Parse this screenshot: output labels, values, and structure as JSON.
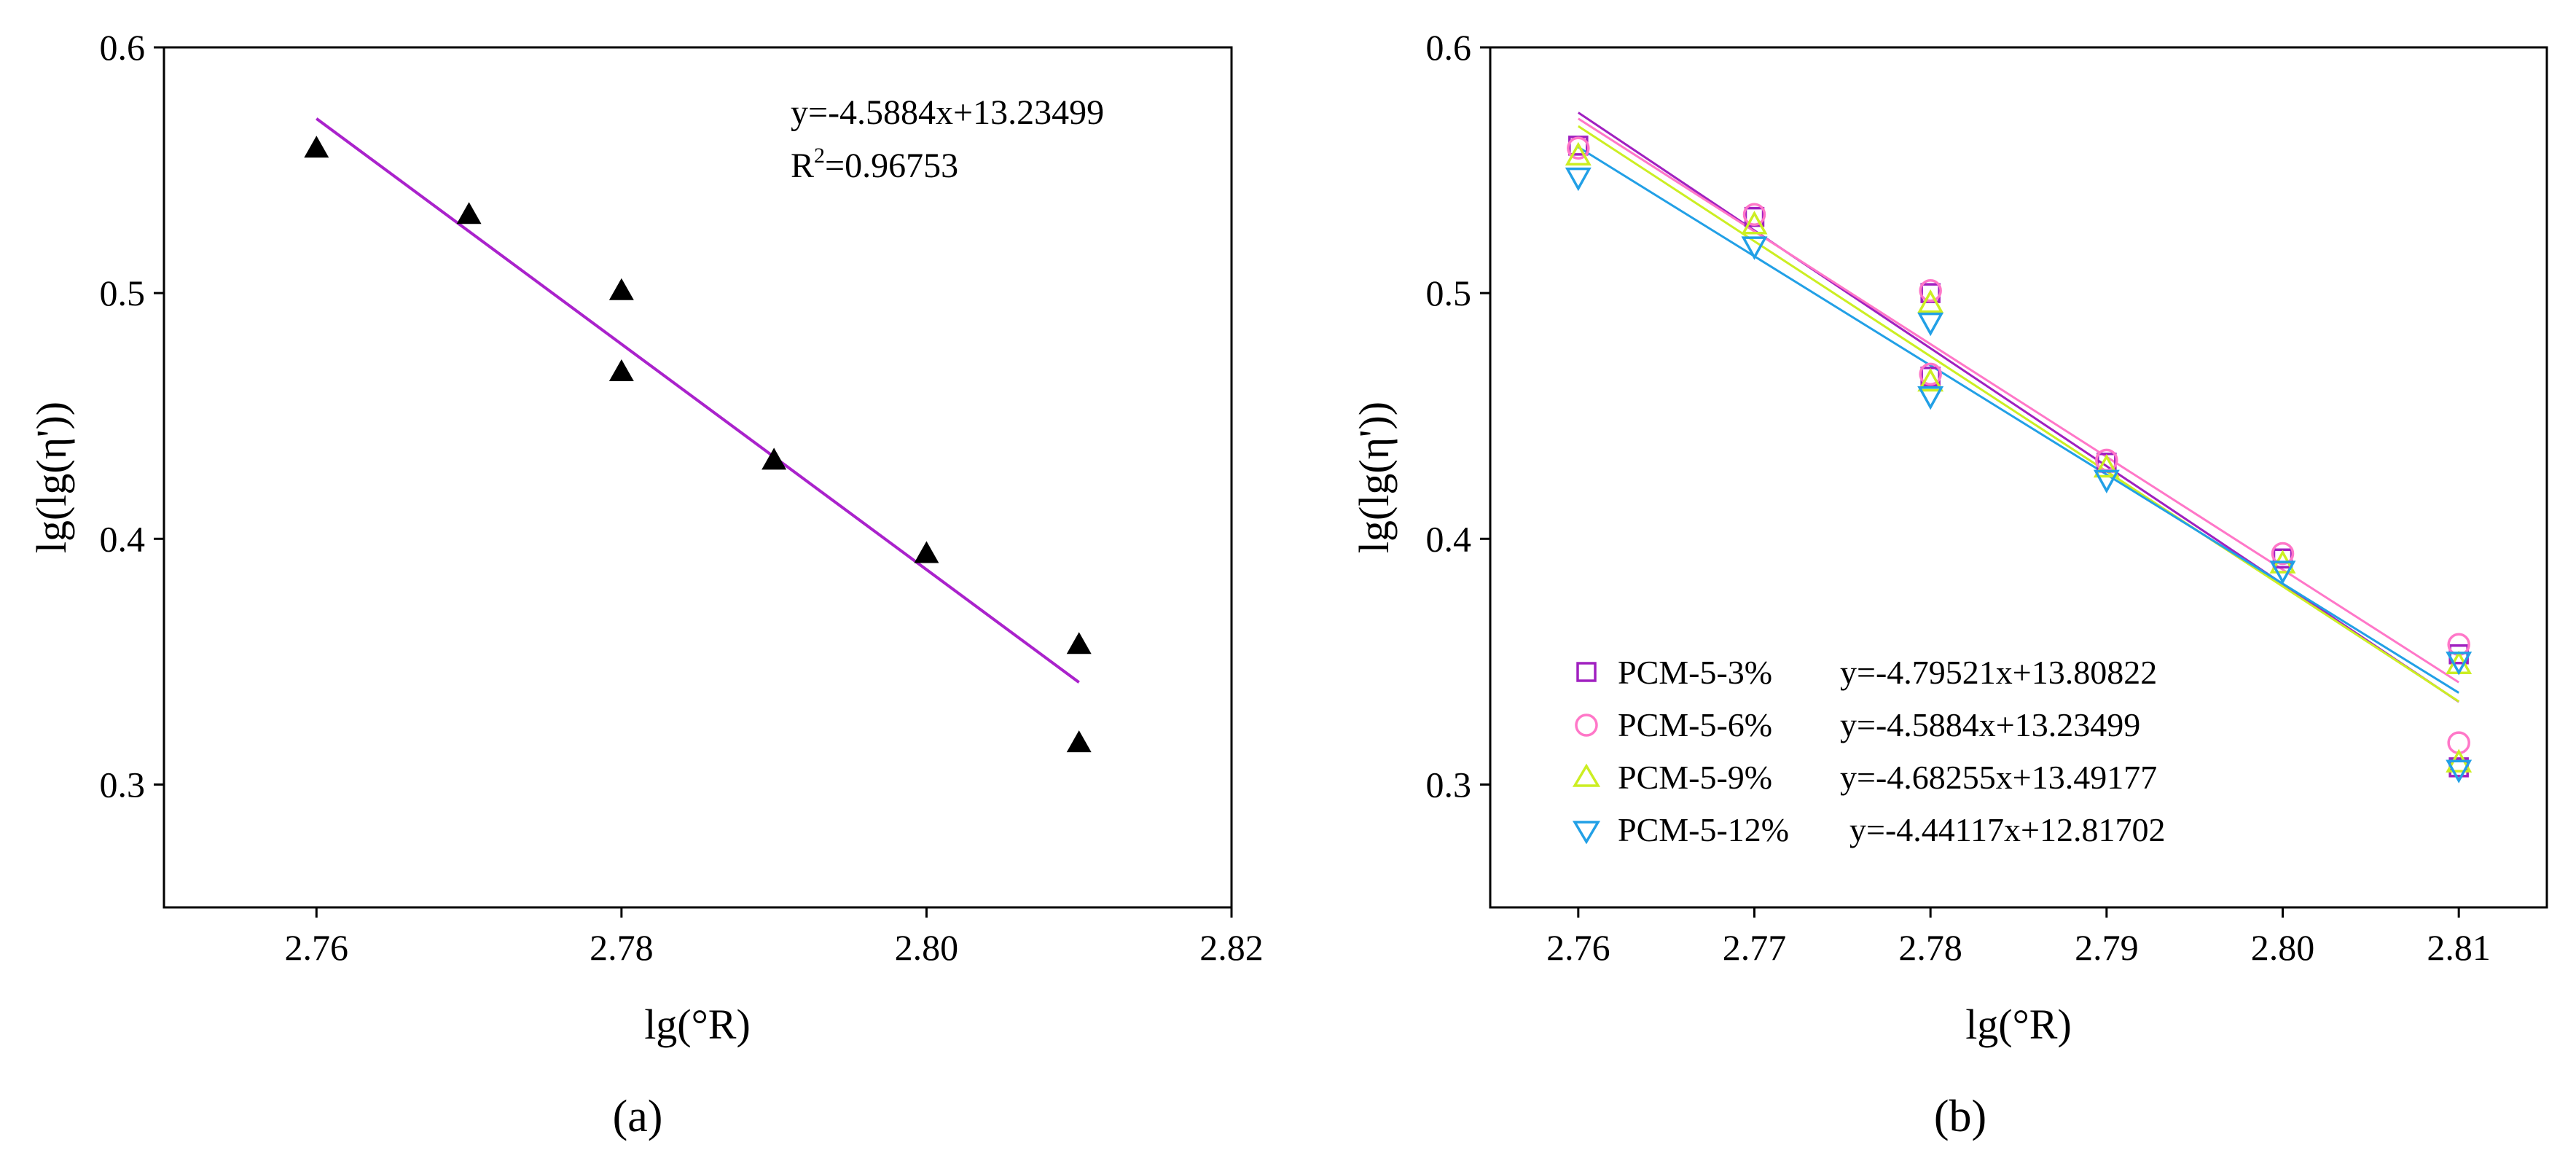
{
  "chart_data": [
    {
      "type": "scatter",
      "panel_label": "(a)",
      "xlabel": "lg(°R)",
      "ylabel": "lg(lg(η'))",
      "xlim": [
        2.75,
        2.82
      ],
      "ylim": [
        0.25,
        0.6
      ],
      "xticks": [
        "2.76",
        "2.78",
        "2.80",
        "2.82"
      ],
      "yticks": [
        "0.3",
        "0.4",
        "0.5",
        "0.6"
      ],
      "series": [
        {
          "name": "PCM-5-6%",
          "marker": "triangle-filled",
          "color": "#000000",
          "x": [
            2.76,
            2.77,
            2.78,
            2.78,
            2.79,
            2.8,
            2.81,
            2.81
          ],
          "y": [
            0.559,
            0.532,
            0.501,
            0.468,
            0.432,
            0.394,
            0.357,
            0.317
          ]
        }
      ],
      "fit": {
        "slope": -4.5884,
        "intercept": 13.23499,
        "x_range": [
          2.76,
          2.81
        ],
        "color": "#aa22cc",
        "equation": "y=-4.5884x+13.23499",
        "r2_prefix": "R",
        "r2_sup": "2",
        "r2_value": "=0.96753"
      }
    },
    {
      "type": "scatter",
      "panel_label": "(b)",
      "xlabel": "lg(°R)",
      "ylabel": "lg(lg(η'))",
      "xlim": [
        2.755,
        2.815
      ],
      "ylim": [
        0.25,
        0.6
      ],
      "xticks": [
        "2.76",
        "2.77",
        "2.78",
        "2.79",
        "2.80",
        "2.81"
      ],
      "yticks": [
        "0.3",
        "0.4",
        "0.5",
        "0.6"
      ],
      "series": [
        {
          "name": "PCM-5-3%",
          "marker": "square-open",
          "color": "#a020c0",
          "equation": "y=-4.79521x+13.80822",
          "slope": -4.79521,
          "intercept": 13.80822,
          "x": [
            2.76,
            2.77,
            2.78,
            2.78,
            2.79,
            2.8,
            2.81,
            2.81
          ],
          "y": [
            0.56,
            0.531,
            0.5,
            0.466,
            0.431,
            0.392,
            0.353,
            0.307
          ]
        },
        {
          "name": "PCM-5-6%",
          "marker": "circle-open",
          "color": "#ff77c8",
          "equation": "y=-4.5884x+13.23499",
          "slope": -4.5884,
          "intercept": 13.23499,
          "x": [
            2.76,
            2.77,
            2.78,
            2.78,
            2.79,
            2.8,
            2.81,
            2.81
          ],
          "y": [
            0.559,
            0.532,
            0.501,
            0.467,
            0.432,
            0.394,
            0.357,
            0.317
          ]
        },
        {
          "name": "PCM-5-9%",
          "marker": "triangle-up-open",
          "color": "#ccee22",
          "equation": "y=-4.68255x+13.49177",
          "slope": -4.68255,
          "intercept": 13.49177,
          "x": [
            2.76,
            2.77,
            2.78,
            2.78,
            2.79,
            2.8,
            2.81,
            2.81
          ],
          "y": [
            0.556,
            0.528,
            0.496,
            0.464,
            0.429,
            0.39,
            0.349,
            0.309
          ]
        },
        {
          "name": "PCM-5-12%",
          "marker": "triangle-down-open",
          "color": "#22a0e6",
          "equation": "y=-4.44117x+12.81702",
          "slope": -4.44117,
          "intercept": 12.81702,
          "x": [
            2.76,
            2.77,
            2.78,
            2.78,
            2.79,
            2.8,
            2.81,
            2.81
          ],
          "y": [
            0.547,
            0.519,
            0.488,
            0.458,
            0.424,
            0.387,
            0.35,
            0.306
          ]
        }
      ]
    }
  ]
}
